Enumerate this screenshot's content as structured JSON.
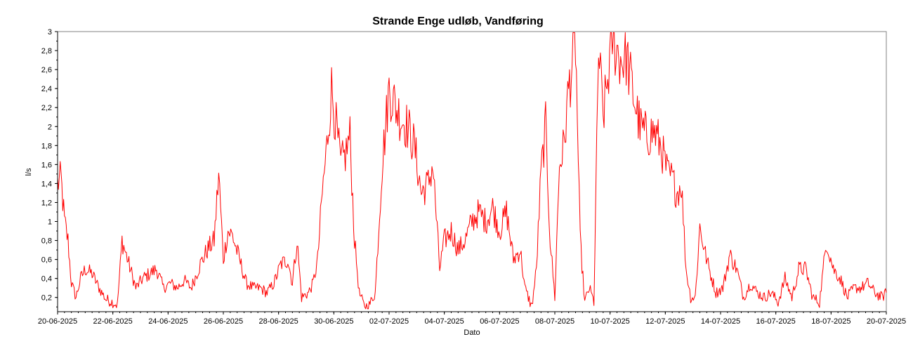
{
  "chart_data": {
    "type": "line",
    "title": "Strande Enge udløb, Vandføring",
    "xlabel": "Dato",
    "ylabel": "l/s",
    "ylim": [
      0.05,
      3.0
    ],
    "xlim": [
      "2025-06-20",
      "2025-07-20"
    ],
    "grid": true,
    "legend": "none",
    "colors": {
      "series": "#ff0000",
      "grid": "#c8c8c8",
      "axis": "#000000"
    },
    "y_ticks": [
      {
        "value": 0.2,
        "label": "0,2"
      },
      {
        "value": 0.4,
        "label": "0,4"
      },
      {
        "value": 0.6,
        "label": "0,6"
      },
      {
        "value": 0.8,
        "label": "0,8"
      },
      {
        "value": 1.0,
        "label": "1"
      },
      {
        "value": 1.2,
        "label": "1,2"
      },
      {
        "value": 1.4,
        "label": "1,4"
      },
      {
        "value": 1.6,
        "label": "1,6"
      },
      {
        "value": 1.8,
        "label": "1,8"
      },
      {
        "value": 2.0,
        "label": "2"
      },
      {
        "value": 2.2,
        "label": "2,2"
      },
      {
        "value": 2.4,
        "label": "2,4"
      },
      {
        "value": 2.6,
        "label": "2,6"
      },
      {
        "value": 2.8,
        "label": "2,8"
      },
      {
        "value": 3.0,
        "label": "3"
      }
    ],
    "x_ticks": [
      {
        "date": "2025-06-20",
        "label": "20-06-2025"
      },
      {
        "date": "2025-06-22",
        "label": "22-06-2025"
      },
      {
        "date": "2025-06-24",
        "label": "24-06-2025"
      },
      {
        "date": "2025-06-26",
        "label": "26-06-2025"
      },
      {
        "date": "2025-06-28",
        "label": "28-06-2025"
      },
      {
        "date": "2025-06-30",
        "label": "30-06-2025"
      },
      {
        "date": "2025-07-02",
        "label": "02-07-2025"
      },
      {
        "date": "2025-07-04",
        "label": "04-07-2025"
      },
      {
        "date": "2025-07-06",
        "label": "06-07-2025"
      },
      {
        "date": "2025-07-08",
        "label": "08-07-2025"
      },
      {
        "date": "2025-07-10",
        "label": "10-07-2025"
      },
      {
        "date": "2025-07-12",
        "label": "12-07-2025"
      },
      {
        "date": "2025-07-14",
        "label": "14-07-2025"
      },
      {
        "date": "2025-07-16",
        "label": "16-07-2025"
      },
      {
        "date": "2025-07-18",
        "label": "18-07-2025"
      },
      {
        "date": "2025-07-20",
        "label": "20-07-2025"
      }
    ],
    "series": [
      {
        "x": [
          "2025-06-20 00:00",
          "2025-06-20 03:00",
          "2025-06-20 06:00",
          "2025-06-20 09:00",
          "2025-06-20 12:00",
          "2025-06-20 16:00",
          "2025-06-20 20:00",
          "2025-06-21 00:00",
          "2025-06-21 06:00",
          "2025-06-21 12:00",
          "2025-06-21 18:00",
          "2025-06-22 00:00",
          "2025-06-22 04:00",
          "2025-06-22 08:00",
          "2025-06-22 14:00",
          "2025-06-22 20:00",
          "2025-06-23 02:00",
          "2025-06-23 08:00",
          "2025-06-23 14:00",
          "2025-06-23 20:00",
          "2025-06-24 02:00",
          "2025-06-24 08:00",
          "2025-06-24 14:00",
          "2025-06-24 20:00",
          "2025-06-25 04:00",
          "2025-06-25 10:00",
          "2025-06-25 16:00",
          "2025-06-25 20:00",
          "2025-06-26 00:00",
          "2025-06-26 04:00",
          "2025-06-26 08:00",
          "2025-06-26 14:00",
          "2025-06-26 20:00",
          "2025-06-27 02:00",
          "2025-06-27 08:00",
          "2025-06-27 14:00",
          "2025-06-27 20:00",
          "2025-06-28 02:00",
          "2025-06-28 08:00",
          "2025-06-28 12:00",
          "2025-06-28 16:00",
          "2025-06-28 20:00",
          "2025-06-29 02:00",
          "2025-06-29 06:00",
          "2025-06-29 10:00",
          "2025-06-29 14:00",
          "2025-06-29 18:00",
          "2025-06-29 22:00",
          "2025-06-30 02:00",
          "2025-06-30 06:00",
          "2025-06-30 10:00",
          "2025-06-30 14:00",
          "2025-06-30 18:00",
          "2025-06-30 22:00",
          "2025-07-01 02:00",
          "2025-07-01 06:00",
          "2025-07-01 12:00",
          "2025-07-01 18:00",
          "2025-07-02 00:00",
          "2025-07-02 06:00",
          "2025-07-02 10:00",
          "2025-07-02 16:00",
          "2025-07-02 22:00",
          "2025-07-03 04:00",
          "2025-07-03 10:00",
          "2025-07-03 14:00",
          "2025-07-03 20:00",
          "2025-07-04 00:00",
          "2025-07-04 06:00",
          "2025-07-04 12:00",
          "2025-07-04 18:00",
          "2025-07-05 00:00",
          "2025-07-05 06:00",
          "2025-07-05 12:00",
          "2025-07-05 18:00",
          "2025-07-06 00:00",
          "2025-07-06 06:00",
          "2025-07-06 12:00",
          "2025-07-06 18:00",
          "2025-07-06 22:00",
          "2025-07-07 04:00",
          "2025-07-07 08:00",
          "2025-07-07 12:00",
          "2025-07-07 16:00",
          "2025-07-07 20:00",
          "2025-07-08 00:00",
          "2025-07-08 04:00",
          "2025-07-08 08:00",
          "2025-07-08 12:00",
          "2025-07-08 18:00",
          "2025-07-08 22:00",
          "2025-07-09 02:00",
          "2025-07-09 06:00",
          "2025-07-09 10:00",
          "2025-07-09 14:00",
          "2025-07-09 18:00",
          "2025-07-09 22:00",
          "2025-07-10 02:00",
          "2025-07-10 06:00",
          "2025-07-10 10:00",
          "2025-07-10 14:00",
          "2025-07-10 20:00",
          "2025-07-11 02:00",
          "2025-07-11 08:00",
          "2025-07-11 14:00",
          "2025-07-11 20:00",
          "2025-07-12 02:00",
          "2025-07-12 06:00",
          "2025-07-12 10:00",
          "2025-07-12 14:00",
          "2025-07-12 18:00",
          "2025-07-12 22:00",
          "2025-07-13 02:00",
          "2025-07-13 06:00",
          "2025-07-13 10:00",
          "2025-07-13 14:00",
          "2025-07-13 20:00",
          "2025-07-14 02:00",
          "2025-07-14 08:00",
          "2025-07-14 14:00",
          "2025-07-14 20:00",
          "2025-07-15 02:00",
          "2025-07-15 08:00",
          "2025-07-15 14:00",
          "2025-07-15 20:00",
          "2025-07-16 02:00",
          "2025-07-16 08:00",
          "2025-07-16 14:00",
          "2025-07-16 20:00",
          "2025-07-17 02:00",
          "2025-07-17 08:00",
          "2025-07-17 14:00",
          "2025-07-17 20:00",
          "2025-07-18 02:00",
          "2025-07-18 08:00",
          "2025-07-18 14:00",
          "2025-07-18 20:00",
          "2025-07-19 02:00",
          "2025-07-19 08:00",
          "2025-07-19 14:00",
          "2025-07-19 20:00",
          "2025-07-20 00:00"
        ],
        "values": [
          1.4,
          1.45,
          1.0,
          0.8,
          0.35,
          0.2,
          0.4,
          0.5,
          0.45,
          0.3,
          0.18,
          0.15,
          0.12,
          0.8,
          0.55,
          0.3,
          0.4,
          0.45,
          0.5,
          0.3,
          0.35,
          0.3,
          0.38,
          0.3,
          0.55,
          0.7,
          0.8,
          1.5,
          0.6,
          0.9,
          0.85,
          0.6,
          0.35,
          0.3,
          0.3,
          0.25,
          0.35,
          0.55,
          0.6,
          0.35,
          0.8,
          0.2,
          0.25,
          0.35,
          0.6,
          1.3,
          1.8,
          2.4,
          2.0,
          1.6,
          1.7,
          1.9,
          0.8,
          0.25,
          0.12,
          0.1,
          0.25,
          1.6,
          2.4,
          2.2,
          2.1,
          2.0,
          1.8,
          1.3,
          1.4,
          1.6,
          0.5,
          0.8,
          0.9,
          0.7,
          0.8,
          1.0,
          1.1,
          1.0,
          1.15,
          0.9,
          1.1,
          0.6,
          0.7,
          0.3,
          0.1,
          0.5,
          1.5,
          2.0,
          0.8,
          0.2,
          1.6,
          1.8,
          2.4,
          2.9,
          0.8,
          0.15,
          0.3,
          0.15,
          2.8,
          2.1,
          2.5,
          2.95,
          2.8,
          2.7,
          2.75,
          2.35,
          2.0,
          1.9,
          1.95,
          1.8,
          1.5,
          1.45,
          1.3,
          1.4,
          0.5,
          0.2,
          0.2,
          0.95,
          0.7,
          0.5,
          0.25,
          0.3,
          0.65,
          0.5,
          0.2,
          0.35,
          0.25,
          0.2,
          0.25,
          0.15,
          0.4,
          0.2,
          0.5,
          0.5,
          0.2,
          0.15,
          0.8,
          0.5,
          0.4,
          0.2,
          0.3,
          0.3,
          0.35,
          0.25,
          0.2,
          0.25
        ]
      }
    ]
  }
}
